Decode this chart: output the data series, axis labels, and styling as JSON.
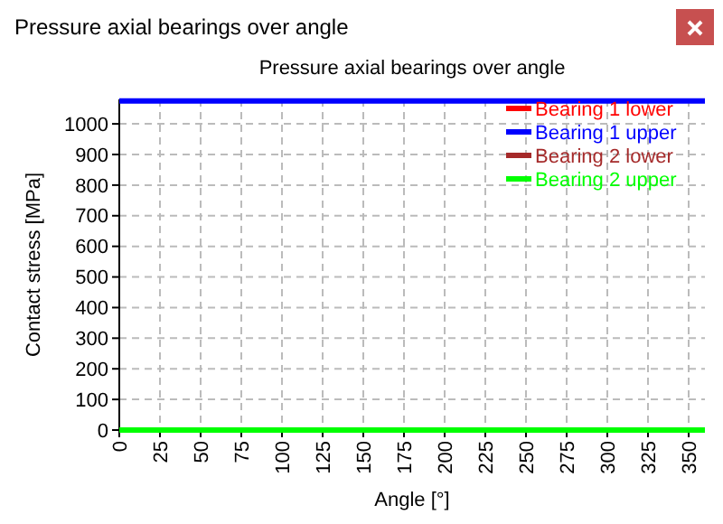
{
  "chart_data": {
    "type": "line",
    "title": "Pressure axial bearings over angle",
    "annotations": [
      "Pressure axial bearings over angle"
    ],
    "xlabel": "Angle [°]",
    "ylabel": "Contact stress [MPa]",
    "xlim": [
      0,
      360
    ],
    "xticks": [
      0,
      25,
      50,
      75,
      100,
      125,
      150,
      175,
      200,
      225,
      250,
      275,
      300,
      325,
      350
    ],
    "ylim": [
      0,
      1080
    ],
    "yticks": [
      0,
      100,
      200,
      300,
      400,
      500,
      600,
      700,
      800,
      900,
      1000
    ],
    "grid": true,
    "legend": "top right",
    "x": [
      0,
      360
    ],
    "series": [
      {
        "name": "Bearing 1 lower",
        "color": "#ff0000",
        "values": [
          null,
          null
        ]
      },
      {
        "name": "Bearing 1 upper",
        "color": "#0000ff",
        "values": [
          1075,
          1075
        ]
      },
      {
        "name": "Bearing 2 lower",
        "color": "#a52a2a",
        "values": [
          null,
          null
        ]
      },
      {
        "name": "Bearing 2 upper",
        "color": "#00ff00",
        "values": [
          0,
          0
        ]
      }
    ]
  }
}
